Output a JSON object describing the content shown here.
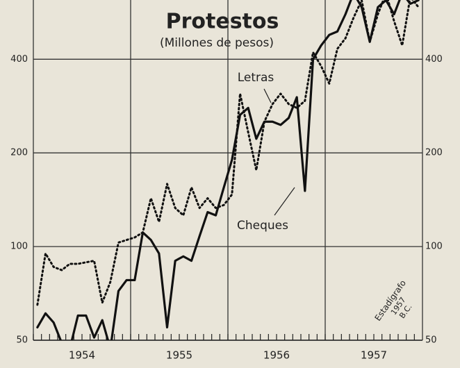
{
  "chart_data": {
    "type": "line",
    "title": "Protestos",
    "subtitle": "(Millones de pesos)",
    "annotations": [
      "Letras",
      "Cheques",
      "Estadígrafo",
      "1957",
      "B.C."
    ],
    "categories": [
      null,
      null,
      null,
      null,
      null,
      null,
      "1954",
      null,
      null,
      null,
      null,
      null,
      null,
      null,
      null,
      null,
      null,
      null,
      "1955",
      null,
      null,
      null,
      null,
      null,
      null,
      null,
      null,
      null,
      null,
      null,
      "1956",
      null,
      null,
      null,
      null,
      null,
      null,
      null,
      null,
      null,
      null,
      null,
      "1957",
      null,
      null,
      null,
      null,
      null
    ],
    "series": [
      {
        "name": "Cheques",
        "color": "#111",
        "dash": "solid",
        "values": [
          55,
          61,
          57,
          49,
          47,
          60,
          60,
          51,
          58,
          47,
          72,
          78,
          78,
          111,
          105,
          95,
          55,
          90,
          93,
          90,
          108,
          129,
          126,
          155,
          190,
          265,
          279,
          222,
          252,
          252,
          246,
          259,
          302,
          151,
          400,
          443,
          479,
          491,
          558,
          652,
          588,
          455,
          588,
          619,
          558,
          652,
          603,
          619
        ]
      },
      {
        "name": "Letras",
        "color": "#111",
        "dash": "dotted",
        "values": [
          65,
          95,
          86,
          84,
          88,
          88,
          89,
          90,
          66,
          77,
          103,
          105,
          107,
          111,
          143,
          120,
          159,
          133,
          126,
          155,
          133,
          143,
          133,
          136,
          147,
          310,
          233,
          176,
          252,
          287,
          310,
          287,
          279,
          294,
          421,
          380,
          334,
          432,
          467,
          544,
          619,
          455,
          558,
          652,
          530,
          443,
          635,
          588
        ]
      }
    ],
    "ylim": [
      50,
      620
    ],
    "yticks": [
      50,
      100,
      200,
      400
    ],
    "log": true,
    "grid": true
  }
}
